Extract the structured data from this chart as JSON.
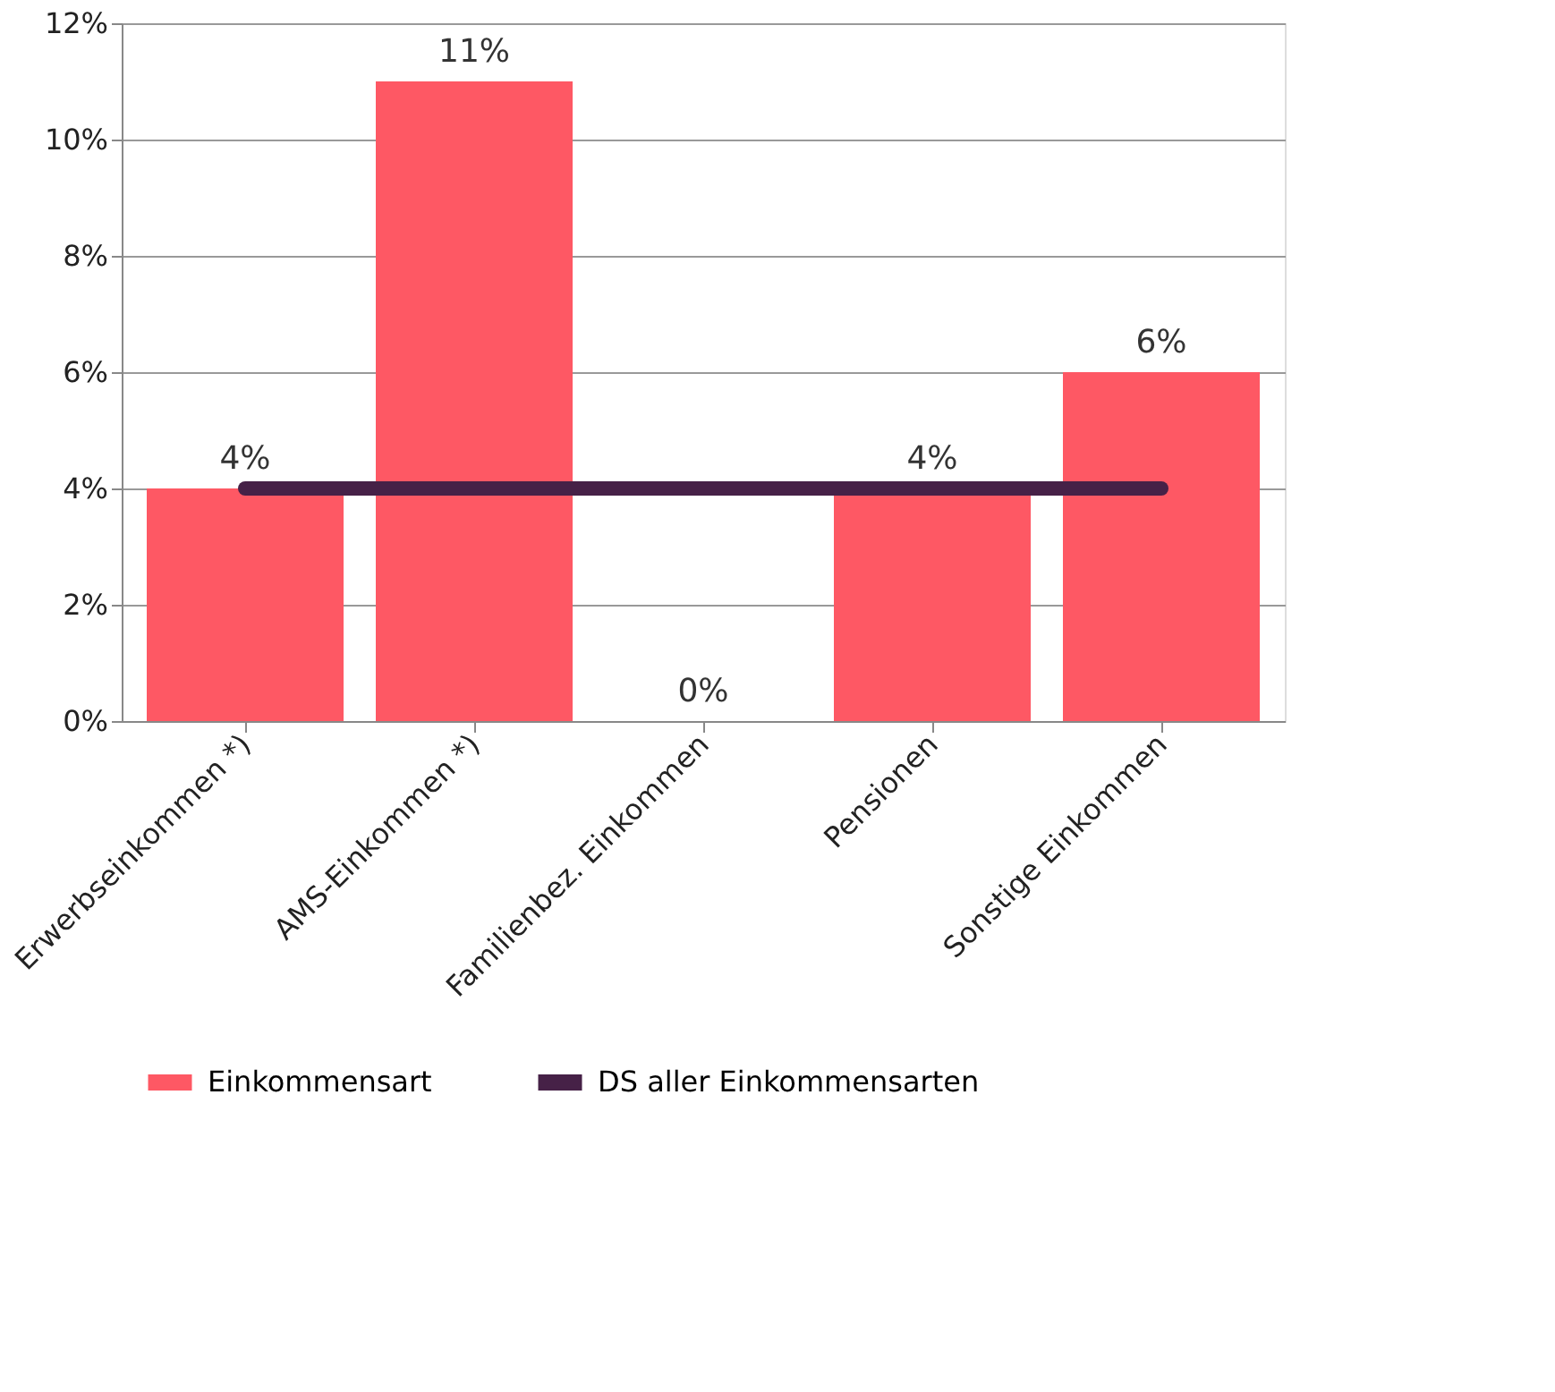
{
  "chart_data": {
    "type": "bar",
    "categories": [
      "Erwerbseinkommen *)",
      "AMS-Einkommen *)",
      "Familienbez. Einkommen",
      "Pensionen",
      "Sonstige Einkommen"
    ],
    "series": [
      {
        "name": "Einkommensart",
        "color": "#fe5864",
        "values": [
          4,
          11,
          0,
          4,
          6
        ],
        "value_labels": [
          "4%",
          "11%",
          "0%",
          "4%",
          "6%"
        ]
      },
      {
        "name": "DS aller Einkommensarten",
        "type": "line",
        "color": "#462147",
        "values": [
          4,
          4,
          4,
          4,
          4
        ],
        "line_style": "solid"
      }
    ],
    "ylim": [
      0,
      12
    ],
    "yticks": [
      {
        "value": 0,
        "label": "0%"
      },
      {
        "value": 2,
        "label": "2%"
      },
      {
        "value": 4,
        "label": "4%"
      },
      {
        "value": 6,
        "label": "6%"
      },
      {
        "value": 8,
        "label": "8%"
      },
      {
        "value": 10,
        "label": "10%"
      },
      {
        "value": 12,
        "label": "12%"
      }
    ],
    "grid": "y",
    "legend": "bottom"
  }
}
